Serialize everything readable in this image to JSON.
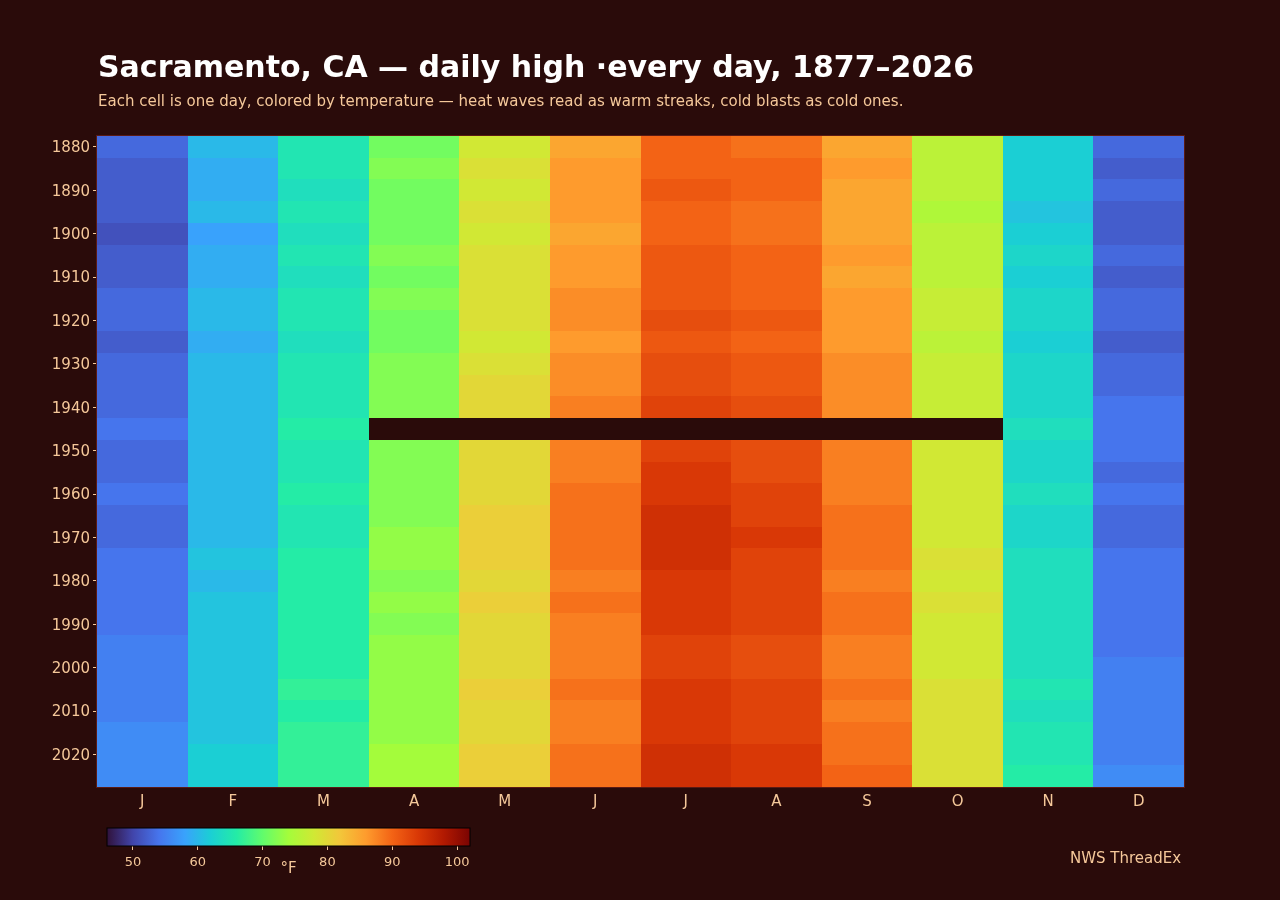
{
  "chart_data": {
    "type": "heatmap",
    "title": "Sacramento, CA — daily high ·every day, 1877–2026",
    "subtitle": "Each cell is one day, colored by temperature — heat waves read as warm streaks, cold blasts as cold ones.",
    "categories": [
      "J",
      "F",
      "M",
      "A",
      "M",
      "J",
      "J",
      "A",
      "S",
      "O",
      "N",
      "D"
    ],
    "y_categories": [
      "1880",
      null,
      "1890",
      null,
      "1900",
      null,
      "1910",
      null,
      "1920",
      null,
      "1930",
      null,
      "1940",
      null,
      "1950",
      null,
      "1960",
      null,
      "1970",
      null,
      "1980",
      null,
      "1990",
      null,
      "2000",
      null,
      "2010",
      null,
      "2020",
      null
    ],
    "cells": [
      [
        53,
        60,
        65,
        71,
        78,
        85,
        90,
        89,
        85,
        76,
        62,
        53
      ],
      [
        52,
        59,
        65,
        72,
        79,
        86,
        90,
        90,
        86,
        76,
        62,
        52
      ],
      [
        52,
        59,
        64,
        71,
        78,
        86,
        91,
        90,
        85,
        76,
        62,
        53
      ],
      [
        52,
        60,
        65,
        71,
        79,
        86,
        90,
        89,
        85,
        75,
        61,
        52
      ],
      [
        51,
        58,
        64,
        71,
        78,
        85,
        90,
        89,
        85,
        76,
        62,
        52
      ],
      [
        52,
        59,
        65,
        72,
        79,
        86,
        91,
        90,
        86,
        76,
        63,
        53
      ],
      [
        52,
        59,
        64,
        71,
        79,
        86,
        91,
        90,
        85,
        76,
        62,
        52
      ],
      [
        53,
        60,
        65,
        72,
        79,
        87,
        91,
        90,
        86,
        77,
        63,
        53
      ],
      [
        53,
        60,
        65,
        71,
        79,
        87,
        92,
        91,
        86,
        77,
        63,
        53
      ],
      [
        52,
        59,
        64,
        71,
        78,
        86,
        91,
        90,
        86,
        76,
        62,
        52
      ],
      [
        53,
        60,
        65,
        72,
        79,
        87,
        92,
        91,
        87,
        77,
        63,
        53
      ],
      [
        53,
        60,
        65,
        72,
        80,
        87,
        92,
        91,
        87,
        77,
        63,
        53
      ],
      [
        53,
        60,
        65,
        72,
        80,
        88,
        93,
        92,
        87,
        77,
        63,
        54
      ],
      [
        54,
        60,
        66,
        null,
        null,
        null,
        null,
        null,
        null,
        null,
        64,
        54
      ],
      [
        53,
        60,
        65,
        72,
        80,
        88,
        93,
        92,
        88,
        78,
        63,
        54
      ],
      [
        53,
        60,
        65,
        72,
        80,
        88,
        94,
        92,
        88,
        78,
        63,
        53
      ],
      [
        54,
        60,
        66,
        72,
        80,
        89,
        94,
        93,
        88,
        78,
        64,
        54
      ],
      [
        53,
        60,
        65,
        72,
        81,
        89,
        95,
        93,
        89,
        78,
        63,
        53
      ],
      [
        53,
        60,
        65,
        73,
        81,
        89,
        95,
        94,
        89,
        78,
        63,
        53
      ],
      [
        54,
        61,
        66,
        73,
        81,
        89,
        95,
        93,
        89,
        79,
        64,
        54
      ],
      [
        54,
        60,
        66,
        72,
        80,
        88,
        94,
        93,
        88,
        78,
        64,
        54
      ],
      [
        54,
        61,
        66,
        73,
        81,
        89,
        94,
        93,
        89,
        79,
        64,
        54
      ],
      [
        54,
        61,
        66,
        72,
        80,
        88,
        94,
        93,
        89,
        78,
        64,
        54
      ],
      [
        55,
        61,
        66,
        73,
        80,
        88,
        93,
        92,
        88,
        78,
        64,
        54
      ],
      [
        55,
        61,
        66,
        73,
        80,
        88,
        93,
        92,
        88,
        78,
        64,
        55
      ],
      [
        55,
        61,
        67,
        73,
        81,
        89,
        94,
        93,
        89,
        79,
        65,
        55
      ],
      [
        55,
        61,
        66,
        73,
        80,
        88,
        94,
        93,
        88,
        79,
        64,
        55
      ],
      [
        56,
        61,
        67,
        73,
        80,
        88,
        94,
        93,
        89,
        79,
        65,
        55
      ],
      [
        56,
        62,
        67,
        74,
        81,
        89,
        95,
        94,
        89,
        79,
        65,
        55
      ],
      [
        56,
        62,
        67,
        74,
        81,
        89,
        95,
        94,
        90,
        79,
        66,
        56
      ]
    ],
    "clim": [
      46,
      102
    ],
    "cticks": [
      50,
      60,
      70,
      80,
      90,
      100
    ],
    "clabel": "°F",
    "annotations": [
      "NWS ThreadEx"
    ],
    "grid": false
  }
}
